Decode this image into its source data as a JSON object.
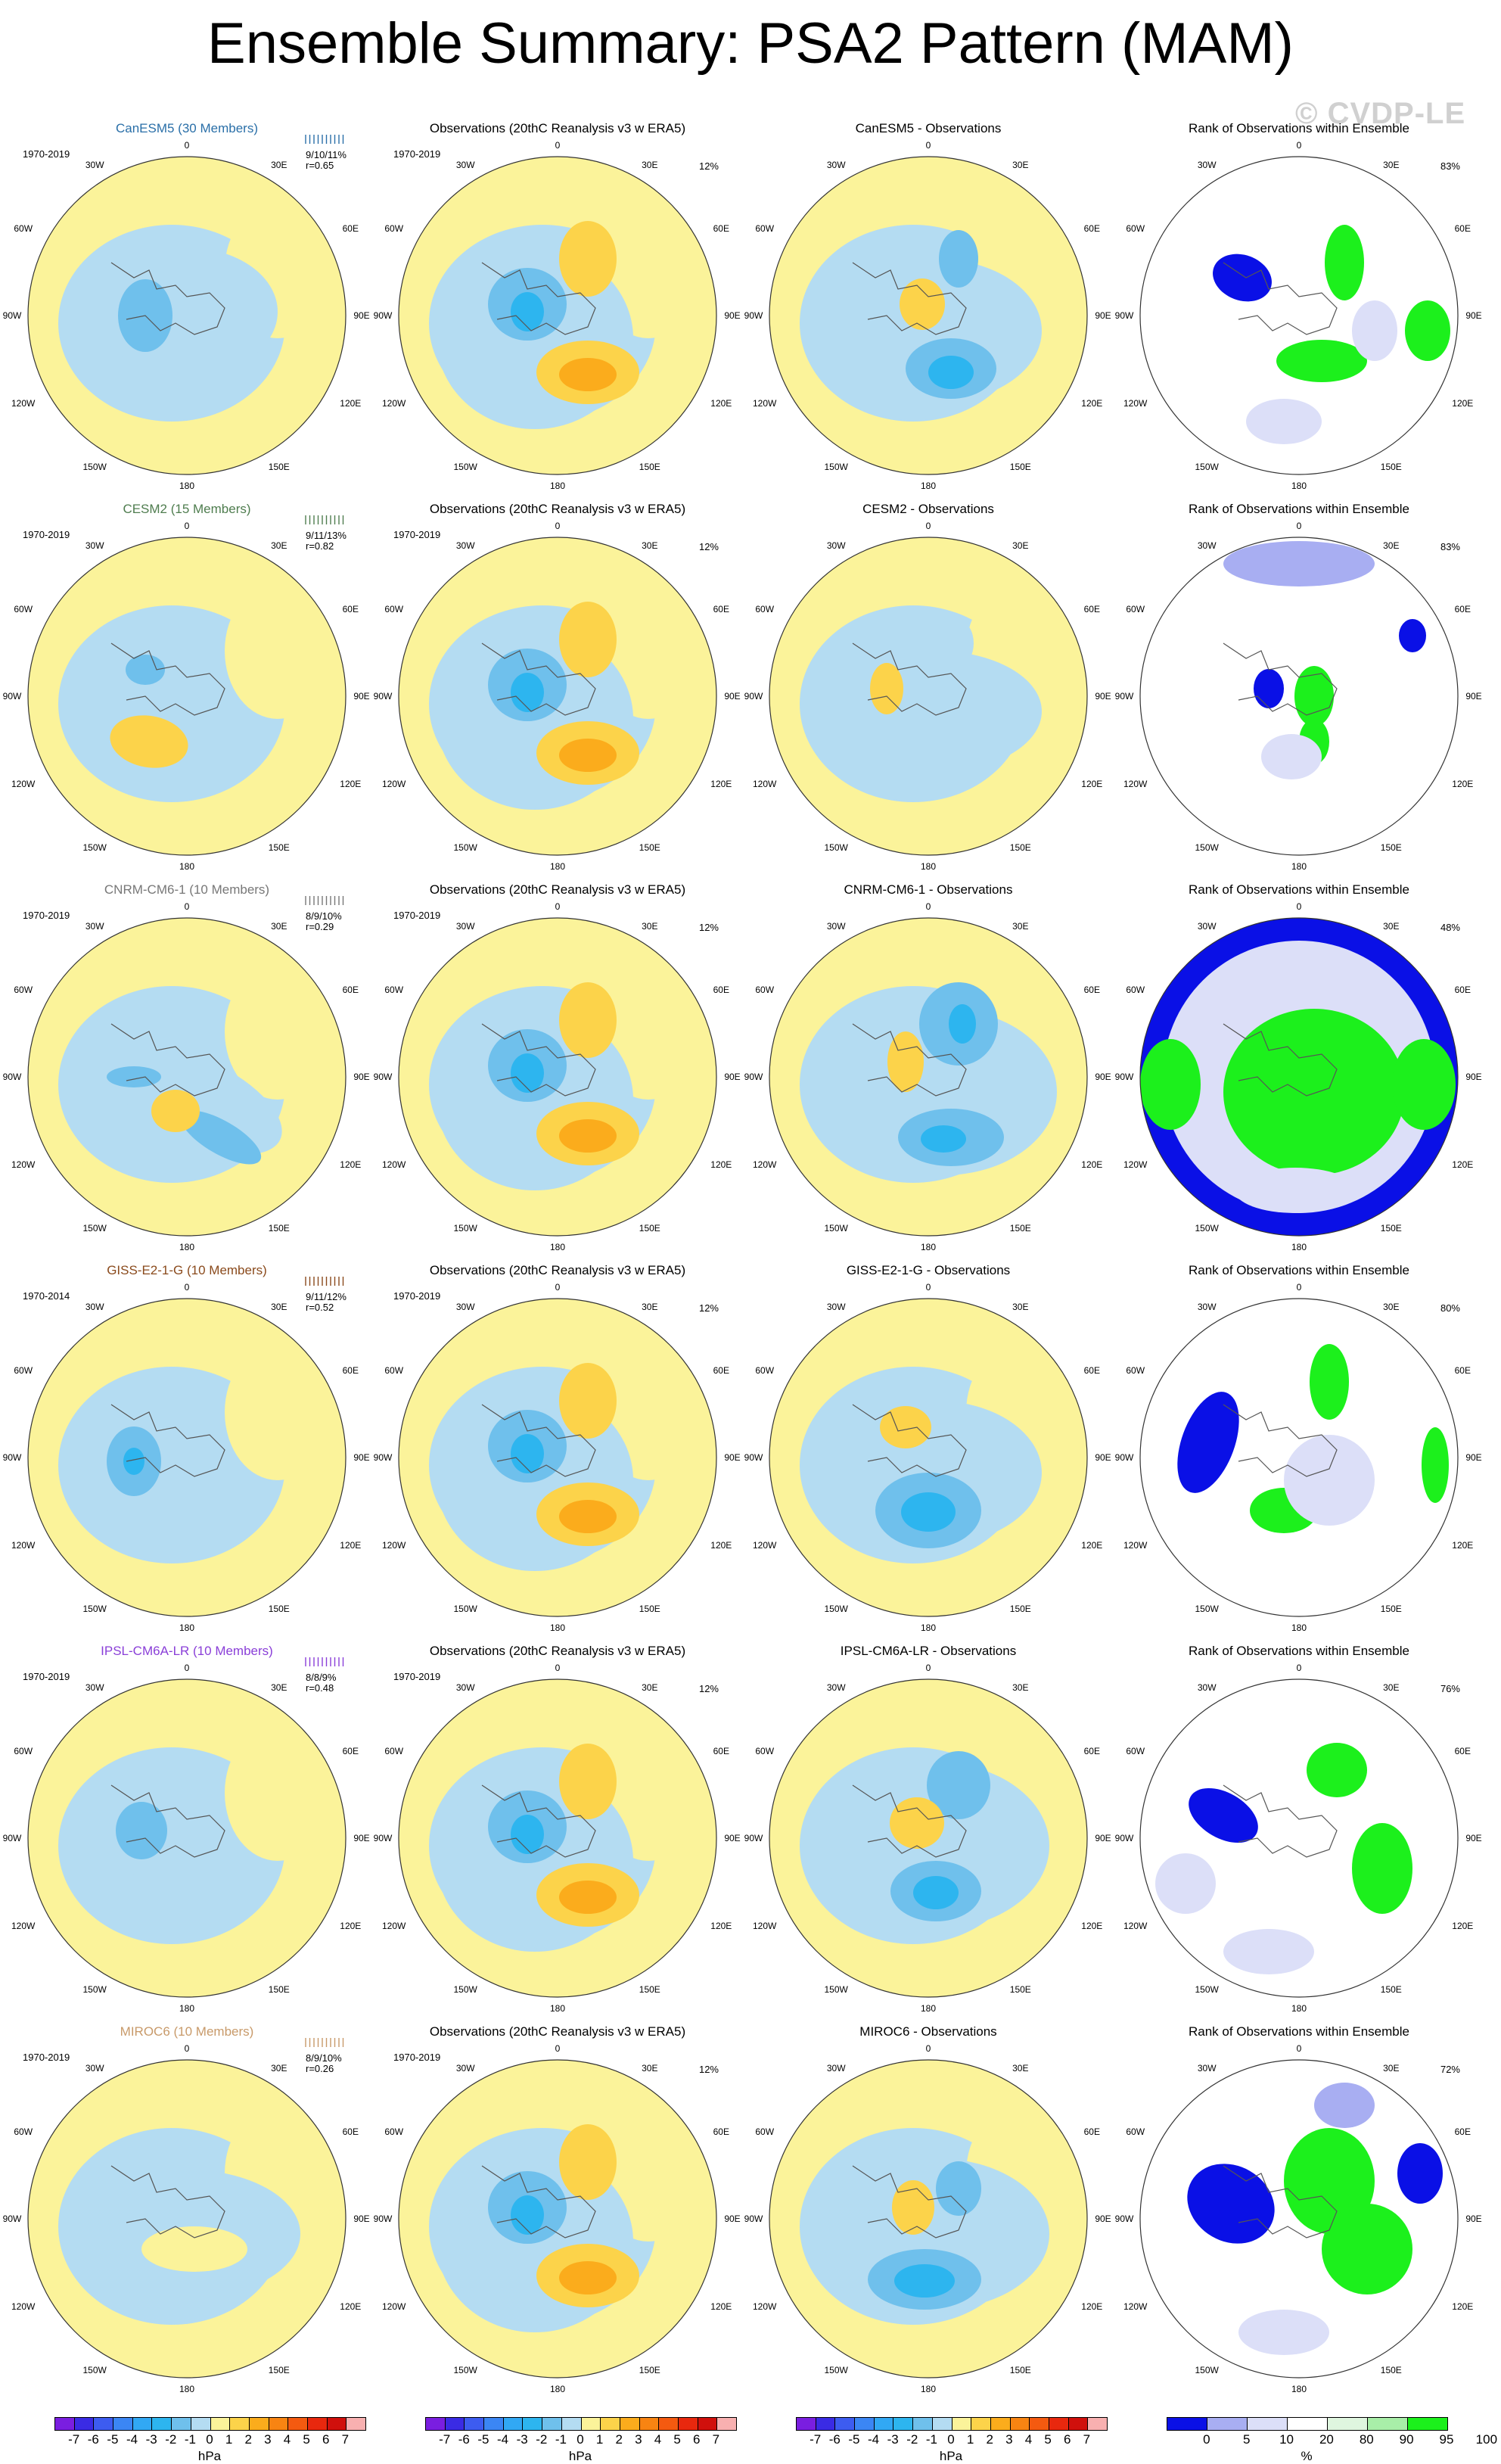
{
  "title": "Ensemble Summary: PSA2 Pattern (MAM)",
  "watermark": "© CVDP-LE",
  "colors": {
    "pos1": "#fbf39a",
    "pos2": "#fcd34a",
    "pos3": "#fbac1c",
    "neg1": "#b4dcf2",
    "neg2": "#6fc0ec",
    "neg3": "#2db5ef",
    "rank_dark_blue": "#0a10e6",
    "rank_mid_blue": "#a8aef2",
    "rank_light_blue": "#dcdff8",
    "rank_light_green": "#dff6df",
    "rank_green": "#1cf01c"
  },
  "map_labels": {
    "top": "0",
    "30E": "30E",
    "60E": "60E",
    "90E": "90E",
    "120E": "120E",
    "150E": "150E",
    "bottom": "180",
    "150W": "150W",
    "120W": "120W",
    "90W": "90W",
    "60W": "60W",
    "30W": "30W"
  },
  "rows": [
    {
      "model": "CanESM5 (30 Members)",
      "model_color": "#2a6fa8",
      "period": "1970-2019",
      "stats1": "9/10/11%",
      "stats2": "r=0.65",
      "obs_title": "Observations (20thC Reanalysis v3 w ERA5)",
      "obs_period": "1970-2019",
      "obs_pct": "12%",
      "diff_title": "CanESM5 - Observations",
      "rank_title": "Rank of Observations within Ensemble",
      "rank_pct": "83%"
    },
    {
      "model": "CESM2 (15 Members)",
      "model_color": "#4f7d4f",
      "period": "1970-2019",
      "stats1": "9/11/13%",
      "stats2": "r=0.82",
      "obs_title": "Observations (20thC Reanalysis v3 w ERA5)",
      "obs_period": "1970-2019",
      "obs_pct": "12%",
      "diff_title": "CESM2 - Observations",
      "rank_title": "Rank of Observations within Ensemble",
      "rank_pct": "83%"
    },
    {
      "model": "CNRM-CM6-1 (10 Members)",
      "model_color": "#777777",
      "period": "1970-2019",
      "stats1": "8/9/10%",
      "stats2": "r=0.29",
      "obs_title": "Observations (20thC Reanalysis v3 w ERA5)",
      "obs_period": "1970-2019",
      "obs_pct": "12%",
      "diff_title": "CNRM-CM6-1 - Observations",
      "rank_title": "Rank of Observations within Ensemble",
      "rank_pct": "48%"
    },
    {
      "model": "GISS-E2-1-G (10 Members)",
      "model_color": "#8a4a1c",
      "period": "1970-2014",
      "stats1": "9/11/12%",
      "stats2": "r=0.52",
      "obs_title": "Observations (20thC Reanalysis v3 w ERA5)",
      "obs_period": "1970-2019",
      "obs_pct": "12%",
      "diff_title": "GISS-E2-1-G - Observations",
      "rank_title": "Rank of Observations within Ensemble",
      "rank_pct": "80%"
    },
    {
      "model": "IPSL-CM6A-LR (10 Members)",
      "model_color": "#8a3fd8",
      "period": "1970-2019",
      "stats1": "8/8/9%",
      "stats2": "r=0.48",
      "obs_title": "Observations (20thC Reanalysis v3 w ERA5)",
      "obs_period": "1970-2019",
      "obs_pct": "12%",
      "diff_title": "IPSL-CM6A-LR - Observations",
      "rank_title": "Rank of Observations within Ensemble",
      "rank_pct": "76%"
    },
    {
      "model": "MIROC6 (10 Members)",
      "model_color": "#c89a6a",
      "period": "1970-2019",
      "stats1": "8/9/10%",
      "stats2": "r=0.26",
      "obs_title": "Observations (20thC Reanalysis v3 w ERA5)",
      "obs_period": "1970-2019",
      "obs_pct": "12%",
      "diff_title": "MIROC6 - Observations",
      "rank_title": "Rank of Observations within Ensemble",
      "rank_pct": "72%"
    }
  ],
  "colorbar_hpa": {
    "ticks": [
      "-7",
      "-6",
      "-5",
      "-4",
      "-3",
      "-2",
      "-1",
      "0",
      "1",
      "2",
      "3",
      "4",
      "5",
      "6",
      "7"
    ],
    "unit": "hPa",
    "colors": [
      "#7a1ee0",
      "#3a2be4",
      "#3d5cf0",
      "#3b86f4",
      "#31a8f4",
      "#2db5ef",
      "#6fc0ec",
      "#b4dcf2",
      "#fbf39a",
      "#fcd34a",
      "#fbac1c",
      "#f88412",
      "#f45a10",
      "#e8280e",
      "#d0100c",
      "#f8b0b0"
    ]
  },
  "colorbar_rank": {
    "ticks": [
      "0",
      "5",
      "10",
      "20",
      "80",
      "90",
      "95",
      "100"
    ],
    "unit": "%",
    "colors": [
      "#0a10e6",
      "#a8aef2",
      "#dcdff8",
      "#ffffff",
      "#dff6df",
      "#a8eea8",
      "#1cf01c"
    ]
  }
}
